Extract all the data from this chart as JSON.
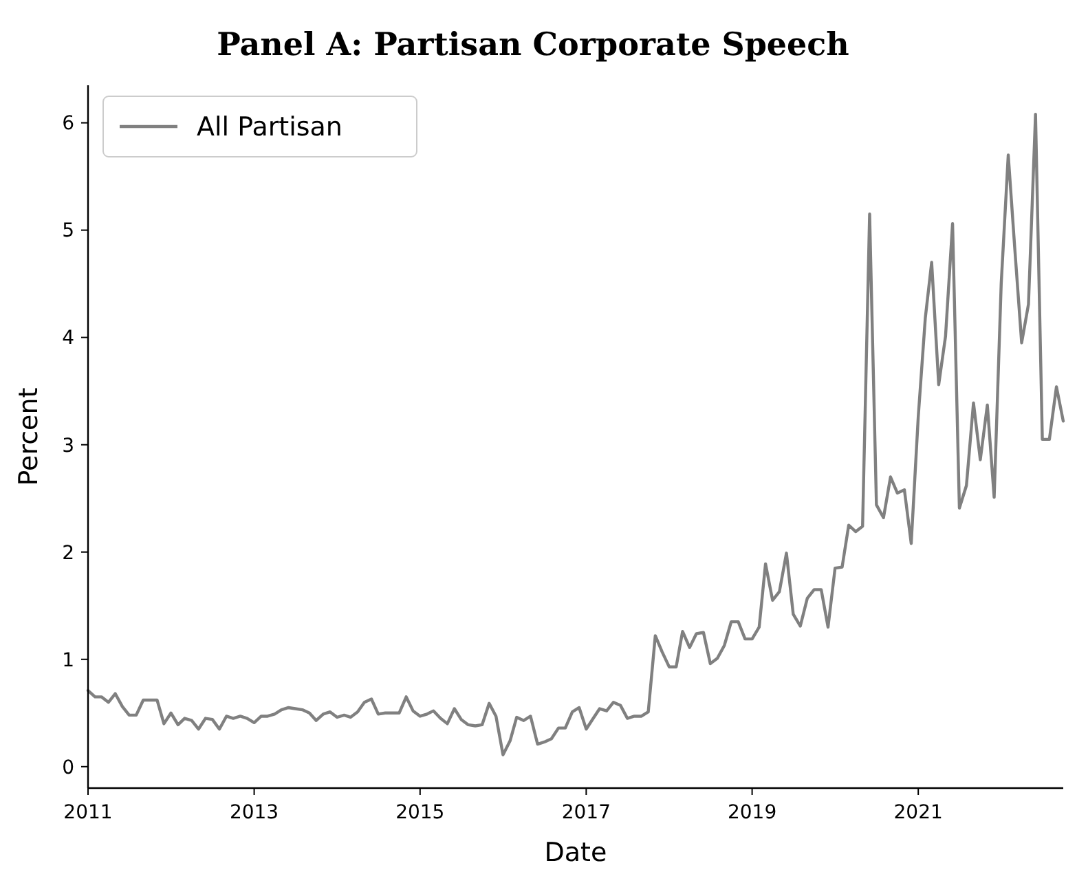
{
  "chart_data": {
    "type": "line",
    "title": "Panel A: Partisan Corporate Speech",
    "xlabel": "Date",
    "ylabel": "Percent",
    "x": [
      "2011-01",
      "2011-02",
      "2011-03",
      "2011-04",
      "2011-05",
      "2011-06",
      "2011-07",
      "2011-08",
      "2011-09",
      "2011-10",
      "2011-11",
      "2011-12",
      "2012-01",
      "2012-02",
      "2012-03",
      "2012-04",
      "2012-05",
      "2012-06",
      "2012-07",
      "2012-08",
      "2012-09",
      "2012-10",
      "2012-11",
      "2012-12",
      "2013-01",
      "2013-02",
      "2013-03",
      "2013-04",
      "2013-05",
      "2013-06",
      "2013-07",
      "2013-08",
      "2013-09",
      "2013-10",
      "2013-11",
      "2013-12",
      "2014-01",
      "2014-02",
      "2014-03",
      "2014-04",
      "2014-05",
      "2014-06",
      "2014-07",
      "2014-08",
      "2014-09",
      "2014-10",
      "2014-11",
      "2014-12",
      "2015-01",
      "2015-02",
      "2015-03",
      "2015-04",
      "2015-05",
      "2015-06",
      "2015-07",
      "2015-08",
      "2015-09",
      "2015-10",
      "2015-11",
      "2015-12",
      "2016-01",
      "2016-02",
      "2016-03",
      "2016-04",
      "2016-05",
      "2016-06",
      "2016-07",
      "2016-08",
      "2016-09",
      "2016-10",
      "2016-11",
      "2016-12",
      "2017-01",
      "2017-02",
      "2017-03",
      "2017-04",
      "2017-05",
      "2017-06",
      "2017-07",
      "2017-08",
      "2017-09",
      "2017-10",
      "2017-11",
      "2017-12",
      "2018-01",
      "2018-02",
      "2018-03",
      "2018-04",
      "2018-05",
      "2018-06",
      "2018-07",
      "2018-08",
      "2018-09",
      "2018-10",
      "2018-11",
      "2018-12",
      "2019-01",
      "2019-02",
      "2019-03",
      "2019-04",
      "2019-05",
      "2019-06",
      "2019-07",
      "2019-08",
      "2019-09",
      "2019-10",
      "2019-11",
      "2019-12",
      "2020-01",
      "2020-02",
      "2020-03",
      "2020-04",
      "2020-05",
      "2020-06",
      "2020-07",
      "2020-08",
      "2020-09",
      "2020-10",
      "2020-11",
      "2020-12",
      "2021-01",
      "2021-02",
      "2021-03",
      "2021-04",
      "2021-05",
      "2021-06",
      "2021-07",
      "2021-08",
      "2021-09",
      "2021-10",
      "2021-11",
      "2021-12",
      "2022-01",
      "2022-02",
      "2022-03",
      "2022-04",
      "2022-05",
      "2022-06",
      "2022-07",
      "2022-08",
      "2022-09",
      "2022-10"
    ],
    "series": [
      {
        "name": "All Partisan",
        "color": "#808080",
        "values": [
          0.71,
          0.65,
          0.65,
          0.6,
          0.68,
          0.56,
          0.48,
          0.48,
          0.62,
          0.62,
          0.62,
          0.4,
          0.5,
          0.39,
          0.45,
          0.43,
          0.35,
          0.45,
          0.44,
          0.35,
          0.47,
          0.45,
          0.47,
          0.45,
          0.41,
          0.47,
          0.47,
          0.49,
          0.53,
          0.55,
          0.54,
          0.53,
          0.5,
          0.43,
          0.49,
          0.51,
          0.46,
          0.48,
          0.46,
          0.51,
          0.6,
          0.63,
          0.49,
          0.5,
          0.5,
          0.5,
          0.65,
          0.52,
          0.47,
          0.49,
          0.52,
          0.45,
          0.4,
          0.54,
          0.44,
          0.39,
          0.38,
          0.39,
          0.59,
          0.47,
          0.11,
          0.24,
          0.46,
          0.43,
          0.47,
          0.21,
          0.23,
          0.26,
          0.36,
          0.36,
          0.51,
          0.55,
          0.35,
          0.45,
          0.54,
          0.52,
          0.6,
          0.57,
          0.45,
          0.47,
          0.47,
          0.51,
          1.22,
          1.07,
          0.93,
          0.93,
          1.26,
          1.11,
          1.24,
          1.25,
          0.96,
          1.01,
          1.13,
          1.35,
          1.35,
          1.19,
          1.19,
          1.3,
          1.89,
          1.55,
          1.63,
          1.99,
          1.42,
          1.31,
          1.57,
          1.65,
          1.65,
          1.3,
          1.85,
          1.86,
          2.25,
          2.19,
          2.24,
          5.15,
          2.44,
          2.32,
          2.7,
          2.55,
          2.58,
          2.08,
          3.26,
          4.18,
          4.7,
          3.56,
          4.01,
          5.06,
          2.41,
          2.62,
          3.39,
          2.86,
          3.37,
          2.51,
          4.5,
          5.7,
          4.85,
          3.95,
          4.31,
          6.08,
          3.05,
          3.05,
          3.54,
          3.22
        ]
      }
    ],
    "xlim": [
      "2011-01",
      "2022-10"
    ],
    "xticks": [
      "2011",
      "2013",
      "2015",
      "2017",
      "2019",
      "2021"
    ],
    "ylim": [
      -0.2,
      6.35
    ],
    "yticks": [
      0,
      1,
      2,
      3,
      4,
      5,
      6
    ],
    "legend": "top left"
  }
}
